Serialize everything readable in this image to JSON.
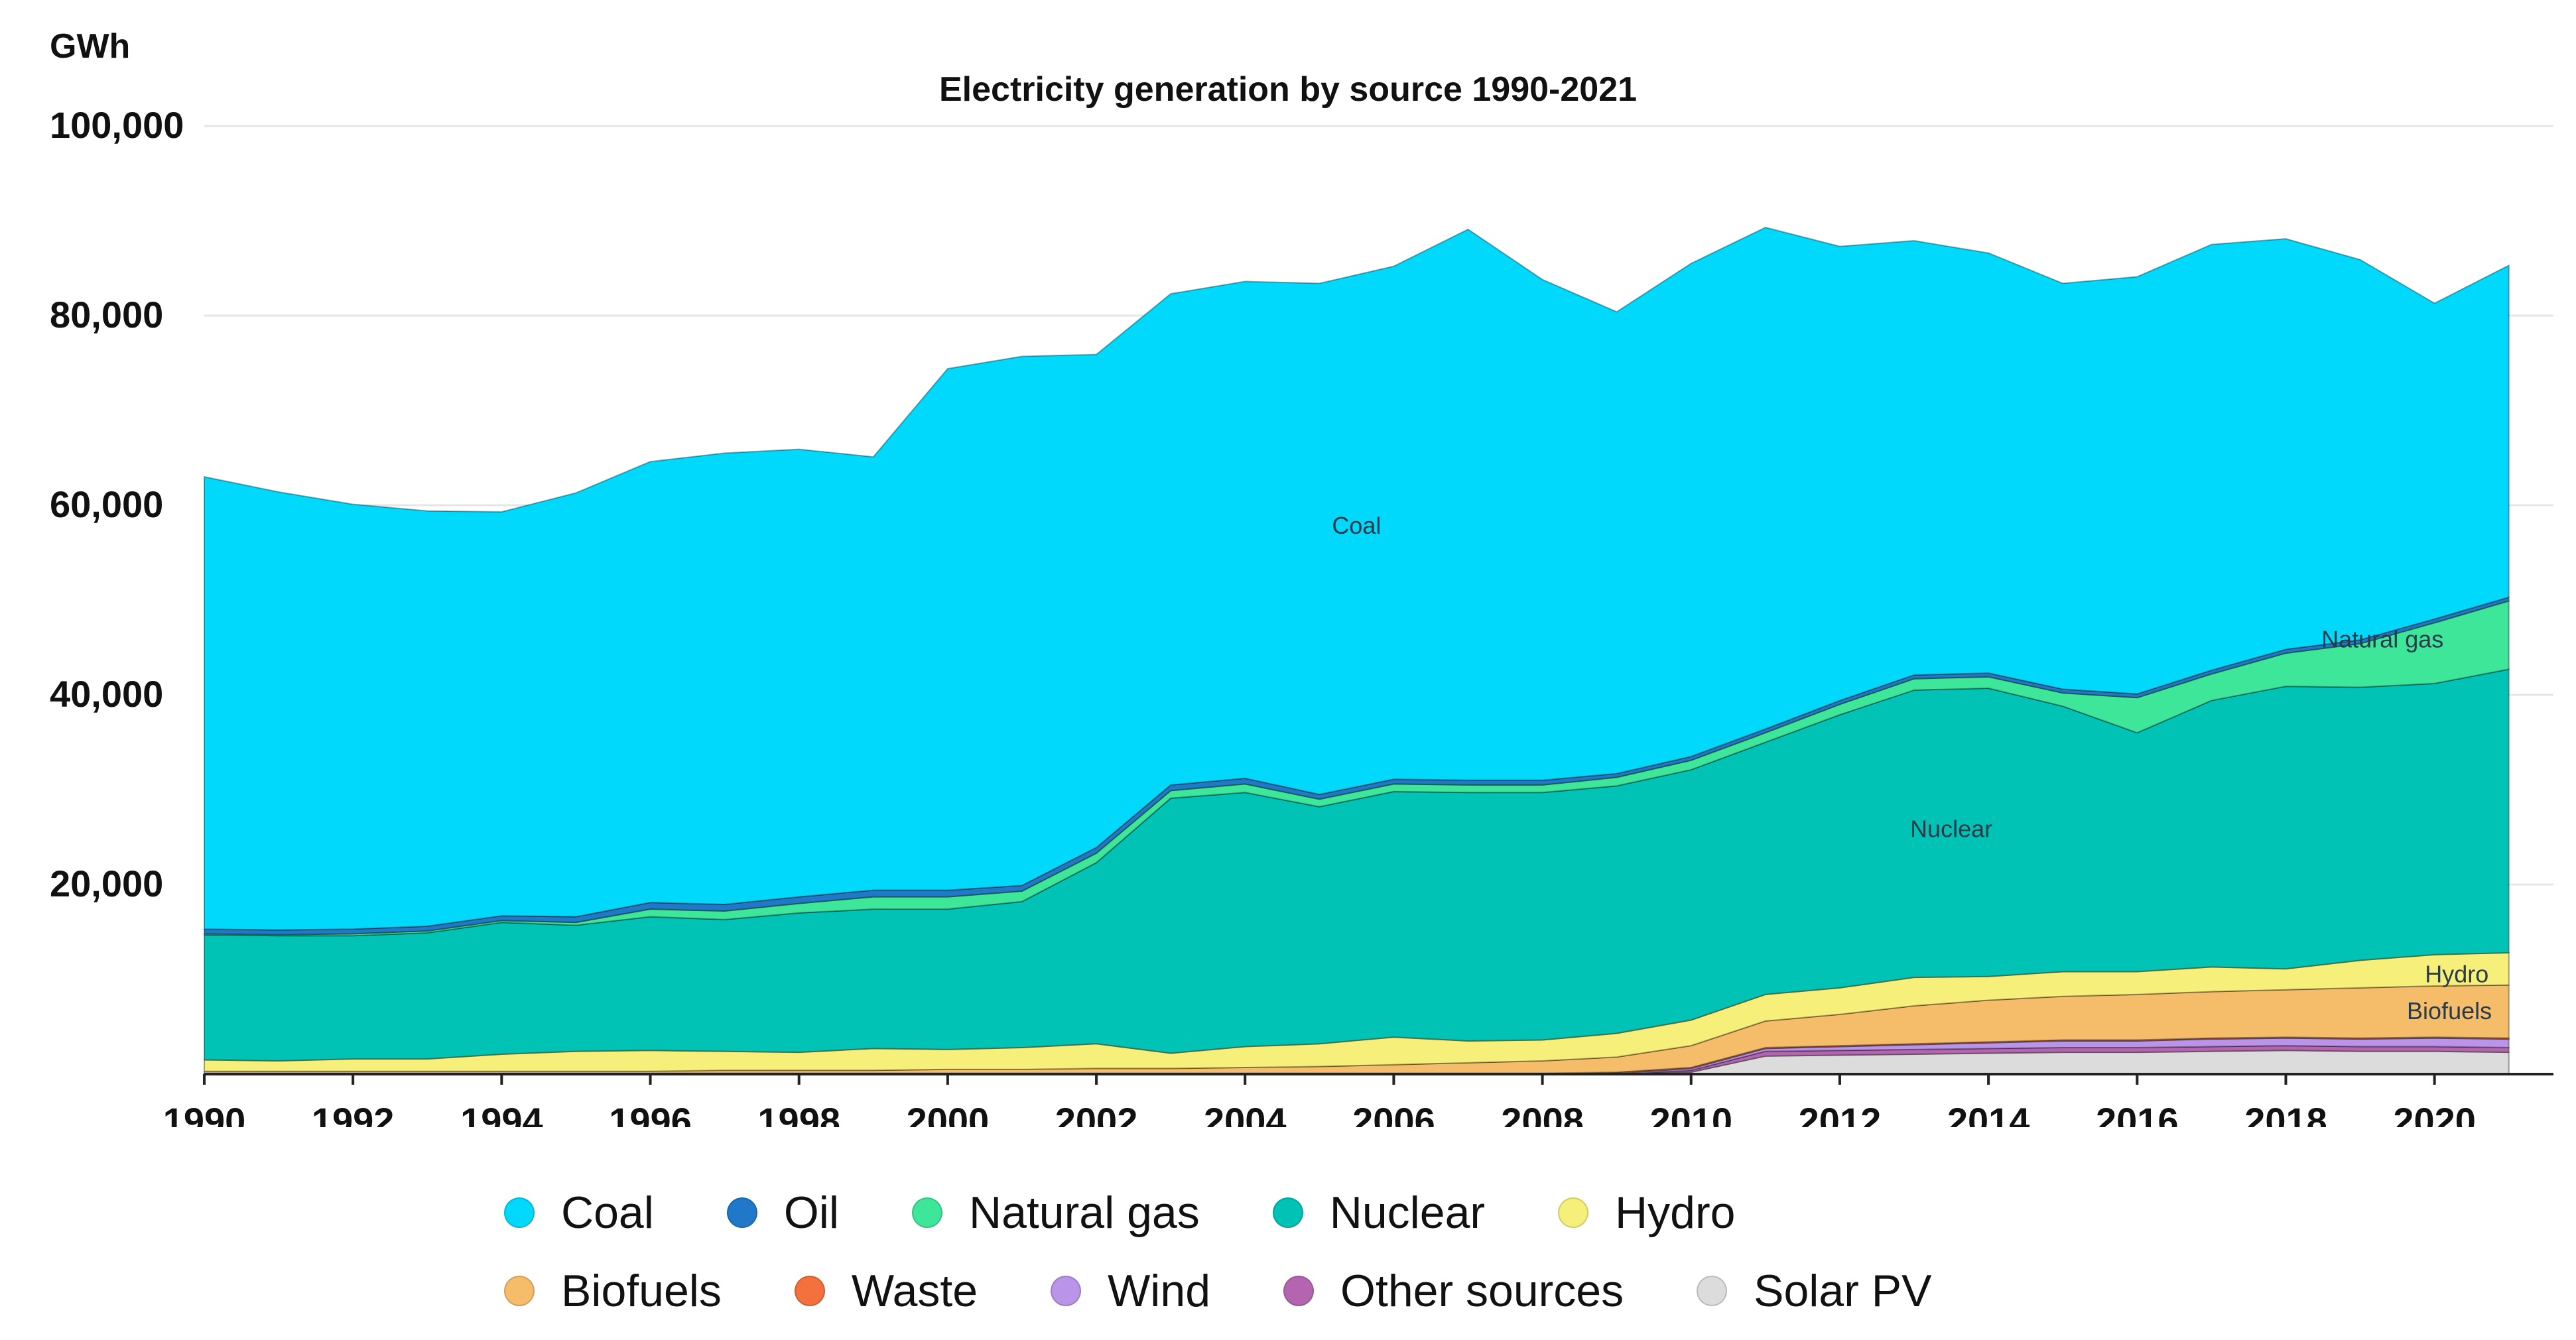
{
  "chart_data": {
    "type": "area",
    "stacked": true,
    "title": "Electricity generation by source 1990-2021",
    "ylabel": "GWh",
    "xlabel": "",
    "ylim": [
      0,
      100000
    ],
    "yticks": [
      20000,
      40000,
      60000,
      80000,
      100000
    ],
    "ytick_labels": [
      "20,000",
      "40,000",
      "60,000",
      "80,000",
      "100,000"
    ],
    "xticks": [
      1990,
      1992,
      1994,
      1996,
      1998,
      2000,
      2002,
      2004,
      2006,
      2008,
      2010,
      2012,
      2014,
      2016,
      2018,
      2020
    ],
    "x": [
      1990,
      1991,
      1992,
      1993,
      1994,
      1995,
      1996,
      1997,
      1998,
      1999,
      2000,
      2001,
      2002,
      2003,
      2004,
      2005,
      2006,
      2007,
      2008,
      2009,
      2010,
      2011,
      2012,
      2013,
      2014,
      2015,
      2016,
      2017,
      2018,
      2019,
      2020,
      2021
    ],
    "series": [
      {
        "name": "Solar PV",
        "color": "#dcdcdc",
        "values": [
          0,
          0,
          0,
          0,
          0,
          0,
          0,
          0,
          0,
          0,
          0,
          0,
          0,
          0,
          0,
          0,
          0,
          0,
          0,
          0,
          200,
          1900,
          2000,
          2100,
          2200,
          2300,
          2300,
          2400,
          2500,
          2400,
          2400,
          2300
        ]
      },
      {
        "name": "Other sources",
        "color": "#b565b0",
        "values": [
          0,
          0,
          0,
          0,
          0,
          0,
          0,
          0,
          0,
          0,
          0,
          0,
          0,
          0,
          0,
          0,
          0,
          0,
          0,
          0,
          200,
          500,
          500,
          500,
          500,
          500,
          500,
          500,
          500,
          500,
          500,
          500
        ]
      },
      {
        "name": "Wind",
        "color": "#b994e8",
        "values": [
          0,
          0,
          0,
          0,
          0,
          0,
          0,
          0,
          0,
          0,
          0,
          0,
          0,
          0,
          0,
          0,
          0,
          0,
          0,
          100,
          200,
          300,
          400,
          500,
          600,
          700,
          700,
          800,
          800,
          800,
          900,
          900
        ]
      },
      {
        "name": "Waste",
        "color": "#f4703d",
        "values": [
          100,
          100,
          100,
          100,
          100,
          100,
          100,
          100,
          100,
          100,
          100,
          100,
          100,
          100,
          100,
          100,
          100,
          100,
          100,
          100,
          100,
          100,
          100,
          100,
          100,
          100,
          100,
          100,
          100,
          100,
          100,
          100
        ]
      },
      {
        "name": "Biofuels",
        "color": "#f5bd6a",
        "values": [
          200,
          200,
          200,
          200,
          200,
          200,
          200,
          300,
          300,
          300,
          400,
          400,
          500,
          500,
          600,
          700,
          900,
          1100,
          1300,
          1600,
          2300,
          2800,
          3300,
          4000,
          4400,
          4600,
          4800,
          4900,
          5000,
          5300,
          5400,
          5600
        ]
      },
      {
        "name": "Hydro",
        "color": "#f6f07a",
        "values": [
          1200,
          1100,
          1300,
          1300,
          1800,
          2100,
          2200,
          2000,
          1900,
          2300,
          2100,
          2300,
          2600,
          1600,
          2200,
          2400,
          2900,
          2300,
          2200,
          2500,
          2700,
          2800,
          2800,
          3000,
          2500,
          2600,
          2400,
          2600,
          2200,
          2900,
          3300,
          3400
        ]
      },
      {
        "name": "Nuclear",
        "color": "#00c3b5",
        "values": [
          13200,
          13200,
          13000,
          13300,
          13900,
          13300,
          14100,
          13900,
          14700,
          14700,
          14800,
          15400,
          19100,
          26900,
          26800,
          25000,
          25900,
          26200,
          26100,
          26100,
          26400,
          26600,
          28800,
          30300,
          30400,
          28000,
          25200,
          28100,
          29800,
          28800,
          28600,
          29900
        ]
      },
      {
        "name": "Natural gas",
        "color": "#3ee69a",
        "values": [
          100,
          100,
          200,
          200,
          200,
          300,
          800,
          900,
          1000,
          1300,
          1300,
          1100,
          1000,
          800,
          900,
          800,
          800,
          800,
          800,
          900,
          1000,
          1000,
          1100,
          1200,
          1200,
          1400,
          3700,
          2800,
          3500,
          4600,
          6400,
          7200
        ]
      },
      {
        "name": "Oil",
        "color": "#1f78c8",
        "values": [
          500,
          500,
          500,
          500,
          500,
          600,
          700,
          700,
          700,
          700,
          700,
          600,
          600,
          600,
          600,
          500,
          500,
          500,
          500,
          400,
          400,
          400,
          400,
          400,
          400,
          400,
          400,
          400,
          400,
          400,
          400,
          400
        ]
      },
      {
        "name": "Coal",
        "color": "#00d9fb",
        "values": [
          47700,
          46200,
          44800,
          43800,
          42600,
          44700,
          46500,
          47600,
          47200,
          45700,
          55000,
          55800,
          52000,
          51800,
          52400,
          53900,
          54100,
          58100,
          52800,
          48700,
          52000,
          52900,
          47900,
          45800,
          44300,
          42800,
          44000,
          44900,
          43300,
          40100,
          33300,
          35000
        ]
      }
    ],
    "legend_position": "bottom",
    "legend_order": [
      "Coal",
      "Oil",
      "Natural gas",
      "Nuclear",
      "Hydro",
      "Biofuels",
      "Waste",
      "Wind",
      "Other sources",
      "Solar PV"
    ],
    "annotations": [
      {
        "text": "Coal",
        "x": 2005.5,
        "y": 57000
      },
      {
        "text": "Nuclear",
        "x": 2013.5,
        "y": 25000
      },
      {
        "text": "Natural gas",
        "x": 2019.3,
        "y": 45000
      },
      {
        "text": "Hydro",
        "x": 2020.3,
        "y": 9700
      },
      {
        "text": "Biofuels",
        "x": 2020.2,
        "y": 5800
      }
    ]
  }
}
